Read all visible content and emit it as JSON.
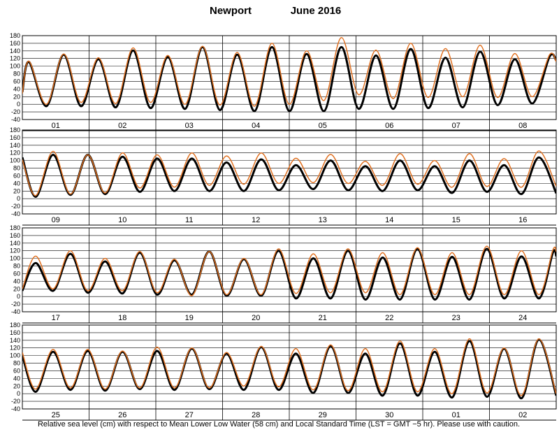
{
  "header": {
    "station": "Newport",
    "period": "June   2016"
  },
  "caption": "Relative sea level (cm) with respect to Mean Lower Low Water (58 cm) and Local Standard Time (LST = GMT −5 hr). Please use with caution.",
  "colors": {
    "observed": "#000000",
    "predicted": "#e07020",
    "grid": "#000000"
  },
  "chart_data": {
    "type": "line",
    "units": "cm",
    "ylim": [
      -40,
      180
    ],
    "yticks": [
      -40,
      -20,
      0,
      20,
      40,
      60,
      80,
      100,
      120,
      140,
      160,
      180
    ],
    "grid": true,
    "legend": "none",
    "series_names": [
      "observed",
      "predicted"
    ],
    "panels": [
      {
        "days": [
          "01",
          "02",
          "03",
          "04",
          "05",
          "06",
          "07",
          "08"
        ],
        "observed": [
          [
            0,
            32
          ],
          [
            0.1,
            111
          ],
          [
            0.36,
            -5
          ],
          [
            0.62,
            130
          ],
          [
            0.88,
            -5
          ],
          [
            1.14,
            118
          ],
          [
            1.4,
            -8
          ],
          [
            1.66,
            141
          ],
          [
            1.92,
            -10
          ],
          [
            2.18,
            124
          ],
          [
            2.44,
            -12
          ],
          [
            2.7,
            150
          ],
          [
            2.96,
            -15
          ],
          [
            3.22,
            130
          ],
          [
            3.48,
            -18
          ],
          [
            3.74,
            150
          ],
          [
            4.0,
            -18
          ],
          [
            4.26,
            132
          ],
          [
            4.52,
            -18
          ],
          [
            4.78,
            150
          ],
          [
            5.04,
            -12
          ],
          [
            5.3,
            128
          ],
          [
            5.56,
            -12
          ],
          [
            5.82,
            145
          ],
          [
            6.08,
            -10
          ],
          [
            6.34,
            122
          ],
          [
            6.6,
            -8
          ],
          [
            6.86,
            138
          ],
          [
            7.12,
            -2
          ],
          [
            7.38,
            118
          ],
          [
            7.64,
            2
          ],
          [
            7.9,
            125
          ],
          [
            8.0,
            115
          ]
        ],
        "predicted": [
          [
            0,
            28
          ],
          [
            0.1,
            113
          ],
          [
            0.36,
            0
          ],
          [
            0.62,
            132
          ],
          [
            0.88,
            5
          ],
          [
            1.14,
            122
          ],
          [
            1.4,
            2
          ],
          [
            1.66,
            148
          ],
          [
            1.92,
            5
          ],
          [
            2.18,
            128
          ],
          [
            2.44,
            0
          ],
          [
            2.7,
            152
          ],
          [
            2.96,
            -2
          ],
          [
            3.22,
            136
          ],
          [
            3.48,
            -5
          ],
          [
            3.74,
            160
          ],
          [
            4.0,
            0
          ],
          [
            4.26,
            140
          ],
          [
            4.52,
            10
          ],
          [
            4.78,
            175
          ],
          [
            5.04,
            25
          ],
          [
            5.3,
            142
          ],
          [
            5.56,
            15
          ],
          [
            5.82,
            160
          ],
          [
            6.08,
            18
          ],
          [
            6.34,
            146
          ],
          [
            6.6,
            20
          ],
          [
            6.86,
            155
          ],
          [
            7.12,
            18
          ],
          [
            7.38,
            133
          ],
          [
            7.64,
            20
          ],
          [
            7.9,
            130
          ],
          [
            8.0,
            112
          ]
        ]
      },
      {
        "days": [
          "09",
          "10",
          "11",
          "12",
          "13",
          "14",
          "15",
          "16"
        ],
        "observed": [
          [
            0,
            108
          ],
          [
            0.2,
            5
          ],
          [
            0.46,
            115
          ],
          [
            0.72,
            10
          ],
          [
            0.98,
            115
          ],
          [
            1.24,
            12
          ],
          [
            1.5,
            110
          ],
          [
            1.76,
            18
          ],
          [
            2.02,
            105
          ],
          [
            2.28,
            20
          ],
          [
            2.54,
            105
          ],
          [
            2.8,
            20
          ],
          [
            3.06,
            95
          ],
          [
            3.32,
            20
          ],
          [
            3.58,
            103
          ],
          [
            3.84,
            22
          ],
          [
            4.1,
            88
          ],
          [
            4.36,
            25
          ],
          [
            4.62,
            100
          ],
          [
            4.88,
            22
          ],
          [
            5.14,
            85
          ],
          [
            5.4,
            20
          ],
          [
            5.66,
            100
          ],
          [
            5.92,
            22
          ],
          [
            6.18,
            85
          ],
          [
            6.44,
            15
          ],
          [
            6.7,
            100
          ],
          [
            6.96,
            18
          ],
          [
            7.22,
            88
          ],
          [
            7.48,
            12
          ],
          [
            7.74,
            108
          ],
          [
            8.0,
            14
          ]
        ],
        "predicted": [
          [
            0,
            102
          ],
          [
            0.2,
            8
          ],
          [
            0.46,
            124
          ],
          [
            0.72,
            12
          ],
          [
            0.98,
            115
          ],
          [
            1.24,
            15
          ],
          [
            1.5,
            120
          ],
          [
            1.76,
            28
          ],
          [
            2.02,
            115
          ],
          [
            2.28,
            30
          ],
          [
            2.54,
            120
          ],
          [
            2.8,
            35
          ],
          [
            3.06,
            112
          ],
          [
            3.32,
            38
          ],
          [
            3.58,
            120
          ],
          [
            3.84,
            40
          ],
          [
            4.1,
            106
          ],
          [
            4.36,
            42
          ],
          [
            4.62,
            116
          ],
          [
            4.88,
            40
          ],
          [
            5.14,
            98
          ],
          [
            5.4,
            35
          ],
          [
            5.66,
            118
          ],
          [
            5.92,
            38
          ],
          [
            6.18,
            100
          ],
          [
            6.44,
            30
          ],
          [
            6.7,
            118
          ],
          [
            6.96,
            32
          ],
          [
            7.22,
            105
          ],
          [
            7.48,
            30
          ],
          [
            7.74,
            125
          ],
          [
            8.0,
            32
          ]
        ]
      },
      {
        "days": [
          "17",
          "18",
          "19",
          "20",
          "21",
          "22",
          "23",
          "24"
        ],
        "observed": [
          [
            0,
            15
          ],
          [
            0.2,
            88
          ],
          [
            0.46,
            15
          ],
          [
            0.72,
            112
          ],
          [
            0.98,
            10
          ],
          [
            1.24,
            92
          ],
          [
            1.5,
            8
          ],
          [
            1.76,
            115
          ],
          [
            2.02,
            5
          ],
          [
            2.28,
            95
          ],
          [
            2.54,
            5
          ],
          [
            2.8,
            118
          ],
          [
            3.06,
            2
          ],
          [
            3.32,
            98
          ],
          [
            3.58,
            2
          ],
          [
            3.84,
            120
          ],
          [
            4.1,
            -5
          ],
          [
            4.36,
            100
          ],
          [
            4.62,
            -5
          ],
          [
            4.88,
            120
          ],
          [
            5.14,
            -8
          ],
          [
            5.4,
            102
          ],
          [
            5.66,
            -8
          ],
          [
            5.92,
            125
          ],
          [
            6.18,
            -8
          ],
          [
            6.44,
            104
          ],
          [
            6.7,
            -8
          ],
          [
            6.96,
            125
          ],
          [
            7.22,
            -5
          ],
          [
            7.48,
            105
          ],
          [
            7.74,
            -5
          ],
          [
            7.95,
            115
          ],
          [
            8.0,
            106
          ]
        ],
        "predicted": [
          [
            0,
            20
          ],
          [
            0.2,
            106
          ],
          [
            0.46,
            20
          ],
          [
            0.72,
            120
          ],
          [
            0.98,
            15
          ],
          [
            1.24,
            100
          ],
          [
            1.5,
            15
          ],
          [
            1.76,
            118
          ],
          [
            2.02,
            10
          ],
          [
            2.28,
            98
          ],
          [
            2.54,
            2
          ],
          [
            2.8,
            118
          ],
          [
            3.06,
            5
          ],
          [
            3.32,
            100
          ],
          [
            3.58,
            5
          ],
          [
            3.84,
            125
          ],
          [
            4.1,
            8
          ],
          [
            4.36,
            112
          ],
          [
            4.62,
            10
          ],
          [
            4.88,
            125
          ],
          [
            5.14,
            10
          ],
          [
            5.4,
            115
          ],
          [
            5.66,
            5
          ],
          [
            5.92,
            128
          ],
          [
            6.18,
            5
          ],
          [
            6.44,
            115
          ],
          [
            6.7,
            5
          ],
          [
            6.96,
            132
          ],
          [
            7.22,
            5
          ],
          [
            7.48,
            120
          ],
          [
            7.74,
            5
          ],
          [
            7.95,
            122
          ],
          [
            8.0,
            118
          ]
        ]
      },
      {
        "days": [
          "25",
          "26",
          "27",
          "28",
          "29",
          "30",
          "01",
          "02"
        ],
        "observed": [
          [
            0,
            100
          ],
          [
            0.2,
            5
          ],
          [
            0.46,
            110
          ],
          [
            0.72,
            10
          ],
          [
            0.98,
            112
          ],
          [
            1.24,
            8
          ],
          [
            1.5,
            110
          ],
          [
            1.76,
            12
          ],
          [
            2.02,
            112
          ],
          [
            2.28,
            10
          ],
          [
            2.54,
            118
          ],
          [
            2.8,
            12
          ],
          [
            3.06,
            105
          ],
          [
            3.32,
            10
          ],
          [
            3.58,
            122
          ],
          [
            3.84,
            10
          ],
          [
            4.1,
            105
          ],
          [
            4.36,
            2
          ],
          [
            4.62,
            125
          ],
          [
            4.88,
            2
          ],
          [
            5.14,
            105
          ],
          [
            5.4,
            -5
          ],
          [
            5.66,
            132
          ],
          [
            5.92,
            -5
          ],
          [
            6.18,
            110
          ],
          [
            6.44,
            -10
          ],
          [
            6.7,
            138
          ],
          [
            6.96,
            -8
          ],
          [
            7.22,
            118
          ],
          [
            7.48,
            -12
          ],
          [
            7.74,
            142
          ],
          [
            8.0,
            -5
          ]
        ],
        "predicted": [
          [
            0,
            108
          ],
          [
            0.2,
            12
          ],
          [
            0.46,
            116
          ],
          [
            0.72,
            15
          ],
          [
            0.98,
            116
          ],
          [
            1.24,
            12
          ],
          [
            1.5,
            112
          ],
          [
            1.76,
            15
          ],
          [
            2.02,
            122
          ],
          [
            2.28,
            15
          ],
          [
            2.54,
            120
          ],
          [
            2.8,
            15
          ],
          [
            3.06,
            108
          ],
          [
            3.32,
            20
          ],
          [
            3.58,
            124
          ],
          [
            3.84,
            18
          ],
          [
            4.1,
            118
          ],
          [
            4.36,
            10
          ],
          [
            4.62,
            128
          ],
          [
            4.88,
            8
          ],
          [
            5.14,
            118
          ],
          [
            5.4,
            5
          ],
          [
            5.66,
            138
          ],
          [
            5.92,
            5
          ],
          [
            6.18,
            118
          ],
          [
            6.44,
            0
          ],
          [
            6.7,
            144
          ],
          [
            6.96,
            2
          ],
          [
            7.22,
            120
          ],
          [
            7.48,
            -5
          ],
          [
            7.74,
            144
          ],
          [
            8.0,
            0
          ]
        ]
      }
    ]
  }
}
